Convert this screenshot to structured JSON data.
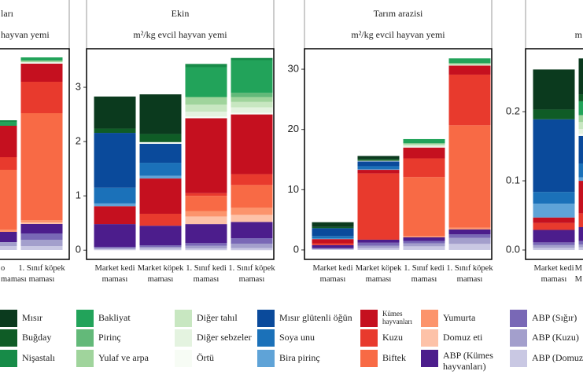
{
  "chart_data": [
    {
      "type": "stacked-bar",
      "title": "ları",
      "subtitle": "hayvan yemi",
      "categories": [
        "o maması",
        "1. Sınıf köpek maması"
      ],
      "ylim": [
        -1.2,
        25.6
      ],
      "series": [
        {
          "name": "Mısır",
          "color": "#0b3a1e",
          "values": [
            0,
            0
          ]
        },
        {
          "name": "Buğday",
          "color": "#0f5c26",
          "values": [
            0,
            0
          ]
        },
        {
          "name": "Nişastalı",
          "color": "#178b48",
          "values": [
            0.2,
            0
          ]
        },
        {
          "name": "Bakliyat",
          "color": "#22a35a",
          "values": [
            0.5,
            0.4
          ]
        },
        {
          "name": "Pirinç",
          "color": "#63b979",
          "values": [
            0,
            0
          ]
        },
        {
          "name": "Yulaf ve arpa",
          "color": "#a0d49c",
          "values": [
            0,
            0.2
          ]
        },
        {
          "name": "Diğer tahıl",
          "color": "#c8e7c1",
          "values": [
            0,
            0
          ]
        },
        {
          "name": "Diğer sebzeler",
          "color": "#e4f3e0",
          "values": [
            0,
            0.1
          ]
        },
        {
          "name": "Örtü",
          "color": "#f7fcf5",
          "values": [
            0,
            0.1
          ]
        },
        {
          "name": "Mısır glütenli öğün",
          "color": "#0a4a9b",
          "values": [
            0,
            0
          ]
        },
        {
          "name": "Soya unu",
          "color": "#1b71b9",
          "values": [
            0,
            0
          ]
        },
        {
          "name": "Bira pirinç",
          "color": "#5fa3d7",
          "values": [
            0,
            0
          ]
        },
        {
          "name": "Kümes hayvanları",
          "color": "#c5101f",
          "values": [
            4.0,
            2.3
          ]
        },
        {
          "name": "Kuzu",
          "color": "#e83a2d",
          "values": [
            1.6,
            4.0
          ]
        },
        {
          "name": "Biftek",
          "color": "#f86a45",
          "values": [
            7.6,
            13.6
          ]
        },
        {
          "name": "Yumurta",
          "color": "#fc946c",
          "values": [
            0.3,
            0.3
          ]
        },
        {
          "name": "Domuz eti",
          "color": "#fdc2a8",
          "values": [
            0,
            0.2
          ]
        },
        {
          "name": "ABP (Kümes hayvanları)",
          "color": "#4c1d8c",
          "values": [
            1.3,
            1.2
          ]
        },
        {
          "name": "ABP (Sığır)",
          "color": "#7968b6",
          "values": [
            0,
            0.8
          ]
        },
        {
          "name": "ABP (Kuzu)",
          "color": "#a39fcc",
          "values": [
            0.5,
            0.8
          ]
        },
        {
          "name": "ABP (Domuz",
          "color": "#c9c8e3",
          "values": [
            0.5,
            0.5
          ]
        }
      ]
    },
    {
      "type": "stacked-bar",
      "title": "Ekin",
      "subtitle": "m²/kg evcil hayvan yemi",
      "categories": [
        "Market kedi maması",
        "Market köpek maması",
        "1. Sınıf kedi maması",
        "1. Sınıf köpek maması"
      ],
      "ylim": [
        -0.17,
        3.71
      ],
      "yticks": [
        0,
        1,
        2,
        3
      ],
      "series": [
        {
          "name": "Mısır",
          "color": "#0b3a1e",
          "values": [
            0.59,
            0.73,
            0,
            0
          ]
        },
        {
          "name": "Buğday",
          "color": "#0f5c26",
          "values": [
            0.08,
            0.15,
            0,
            0
          ]
        },
        {
          "name": "Nişastalı",
          "color": "#178b48",
          "values": [
            0,
            0,
            0.06,
            0.04
          ]
        },
        {
          "name": "Bakliyat",
          "color": "#22a35a",
          "values": [
            0,
            0,
            0.55,
            0.6
          ]
        },
        {
          "name": "Pirinç",
          "color": "#63b979",
          "values": [
            0,
            0,
            0,
            0.08
          ]
        },
        {
          "name": "Yulaf ve arpa",
          "color": "#a0d49c",
          "values": [
            0,
            0,
            0.14,
            0.09
          ]
        },
        {
          "name": "Diğer tahıl",
          "color": "#c8e7c1",
          "values": [
            0,
            0,
            0.13,
            0.1
          ]
        },
        {
          "name": "Diğer sebzeler",
          "color": "#e4f3e0",
          "values": [
            0,
            0,
            0.09,
            0.1
          ]
        },
        {
          "name": "Örtü",
          "color": "#f7fcf5",
          "values": [
            0,
            0.03,
            0.03,
            0.03
          ]
        },
        {
          "name": "Mısır glütenli öğün",
          "color": "#0a4a9b",
          "values": [
            1.01,
            0.35,
            0,
            0
          ]
        },
        {
          "name": "Soya unu",
          "color": "#1b71b9",
          "values": [
            0.29,
            0.24,
            0,
            0
          ]
        },
        {
          "name": "Bira pirinç",
          "color": "#5fa3d7",
          "values": [
            0.05,
            0.05,
            0,
            0
          ]
        },
        {
          "name": "Kümes hayvanları",
          "color": "#c5101f",
          "values": [
            0.33,
            0.65,
            1.38,
            1.1
          ]
        },
        {
          "name": "Kuzu",
          "color": "#e83a2d",
          "values": [
            0,
            0.22,
            0.05,
            0.2
          ]
        },
        {
          "name": "Biftek",
          "color": "#f86a45",
          "values": [
            0,
            0,
            0.28,
            0.42
          ]
        },
        {
          "name": "Yumurta",
          "color": "#fc946c",
          "values": [
            0,
            0,
            0.1,
            0.13
          ]
        },
        {
          "name": "Domuz eti",
          "color": "#fdc2a8",
          "values": [
            0,
            0,
            0.14,
            0.13
          ]
        },
        {
          "name": "ABP (Kümes hayvanları)",
          "color": "#4c1d8c",
          "values": [
            0.42,
            0.36,
            0.35,
            0.3
          ]
        },
        {
          "name": "ABP (Sığır)",
          "color": "#7968b6",
          "values": [
            0.02,
            0.03,
            0.05,
            0.1
          ]
        },
        {
          "name": "ABP (Kuzu)",
          "color": "#a39fcc",
          "values": [
            0.02,
            0.03,
            0.05,
            0.08
          ]
        },
        {
          "name": "ABP (Domuz",
          "color": "#c9c8e3",
          "values": [
            0.02,
            0.03,
            0.03,
            0.04
          ]
        }
      ]
    },
    {
      "type": "stacked-bar",
      "title": "Tarım arazisi",
      "subtitle": "m²/kg evcil hayvan yemi",
      "categories": [
        "Market kedi maması",
        "Market köpek maması",
        "1. Sınıf kedi maması",
        "1. Sınıf köpek maması"
      ],
      "ylim": [
        -1.57,
        33.4
      ],
      "yticks": [
        0,
        10,
        20,
        30
      ],
      "series": [
        {
          "name": "Mısır",
          "color": "#0b3a1e",
          "values": [
            0.8,
            0.5,
            0,
            0
          ]
        },
        {
          "name": "Buğday",
          "color": "#0f5c26",
          "values": [
            0.2,
            0.3,
            0,
            0
          ]
        },
        {
          "name": "Nişastalı",
          "color": "#178b48",
          "values": [
            0,
            0,
            0,
            0
          ]
        },
        {
          "name": "Bakliyat",
          "color": "#22a35a",
          "values": [
            0,
            0,
            0.7,
            0.8
          ]
        },
        {
          "name": "Pirinç",
          "color": "#63b979",
          "values": [
            0,
            0,
            0,
            0
          ]
        },
        {
          "name": "Yulaf ve arpa",
          "color": "#a0d49c",
          "values": [
            0,
            0,
            0.2,
            0.2
          ]
        },
        {
          "name": "Diğer tahıl",
          "color": "#c8e7c1",
          "values": [
            0,
            0,
            0.2,
            0.1
          ]
        },
        {
          "name": "Diğer sebzeler",
          "color": "#e4f3e0",
          "values": [
            0,
            0,
            0.2,
            0.1
          ]
        },
        {
          "name": "Örtü",
          "color": "#f7fcf5",
          "values": [
            0,
            0.1,
            0.1,
            0
          ]
        },
        {
          "name": "Mısır glütenli öğün",
          "color": "#0a4a9b",
          "values": [
            1.3,
            0.8,
            0,
            0
          ]
        },
        {
          "name": "Soya unu",
          "color": "#1b71b9",
          "values": [
            0.4,
            0.5,
            0,
            0
          ]
        },
        {
          "name": "Bira pirinç",
          "color": "#5fa3d7",
          "values": [
            0.1,
            0.1,
            0,
            0
          ]
        },
        {
          "name": "Kümes hayvanları",
          "color": "#c5101f",
          "values": [
            0.7,
            0.6,
            1.8,
            1.5
          ]
        },
        {
          "name": "Kuzu",
          "color": "#e83a2d",
          "values": [
            0.3,
            11.0,
            3.1,
            8.4
          ]
        },
        {
          "name": "Biftek",
          "color": "#f86a45",
          "values": [
            0,
            0,
            9.8,
            17.0
          ]
        },
        {
          "name": "Yumurta",
          "color": "#fc946c",
          "values": [
            0,
            0,
            0.2,
            0.3
          ]
        },
        {
          "name": "Domuz eti",
          "color": "#fdc2a8",
          "values": [
            0,
            0,
            0,
            0
          ]
        },
        {
          "name": "ABP (Kümes hayvanları)",
          "color": "#4c1d8c",
          "values": [
            0.5,
            0.5,
            0.6,
            0.8
          ]
        },
        {
          "name": "ABP (Sığır)",
          "color": "#7968b6",
          "values": [
            0.1,
            0.5,
            0.4,
            0.6
          ]
        },
        {
          "name": "ABP (Kuzu)",
          "color": "#a39fcc",
          "values": [
            0.1,
            0.4,
            0.5,
            1.0
          ]
        },
        {
          "name": "ABP (Domuz",
          "color": "#c9c8e3",
          "values": [
            0.1,
            0.3,
            0.6,
            1.0
          ]
        }
      ]
    },
    {
      "type": "stacked-bar",
      "subtitle": "m",
      "categories": [
        "Market kedi maması",
        "M M"
      ],
      "ylim": [
        -0.0136,
        0.291
      ],
      "yticks": [
        {
          "value": 0,
          "label": "0.0"
        },
        {
          "value": 0.1,
          "label": "0.1"
        },
        {
          "value": 0.2,
          "label": "0.2"
        }
      ],
      "series": [
        {
          "name": "Mısır",
          "color": "#0b3a1e",
          "values": [
            0.058,
            0.052
          ]
        },
        {
          "name": "Buğday",
          "color": "#0f5c26",
          "values": [
            0.014,
            0.01
          ]
        },
        {
          "name": "Nişastalı",
          "color": "#178b48",
          "values": [
            0,
            0
          ]
        },
        {
          "name": "Bakliyat",
          "color": "#22a35a",
          "values": [
            0,
            0.02
          ]
        },
        {
          "name": "Pirinç",
          "color": "#63b979",
          "values": [
            0,
            0
          ]
        },
        {
          "name": "Yulaf ve arpa",
          "color": "#a0d49c",
          "values": [
            0,
            0.01
          ]
        },
        {
          "name": "Diğer tahıl",
          "color": "#c8e7c1",
          "values": [
            0,
            0.01
          ]
        },
        {
          "name": "Diğer sebzeler",
          "color": "#e4f3e0",
          "values": [
            0,
            0.007
          ]
        },
        {
          "name": "Örtü",
          "color": "#f7fcf5",
          "values": [
            0,
            0.003
          ]
        },
        {
          "name": "Mısır glütenli öğün",
          "color": "#0a4a9b",
          "values": [
            0.105,
            0.04
          ]
        },
        {
          "name": "Soya unu",
          "color": "#1b71b9",
          "values": [
            0.017,
            0.02
          ]
        },
        {
          "name": "Bira pirinç",
          "color": "#5fa3d7",
          "values": [
            0.02,
            0.005
          ]
        },
        {
          "name": "Kümes hayvanları",
          "color": "#c5101f",
          "values": [
            0.008,
            0.047
          ]
        },
        {
          "name": "Kuzu",
          "color": "#e83a2d",
          "values": [
            0.01,
            0.02
          ]
        },
        {
          "name": "Biftek",
          "color": "#f86a45",
          "values": [
            0,
            0
          ]
        },
        {
          "name": "Yumurta",
          "color": "#fc946c",
          "values": [
            0,
            0
          ]
        },
        {
          "name": "Domuz eti",
          "color": "#fdc2a8",
          "values": [
            0,
            0
          ]
        },
        {
          "name": "ABP (Kümes hayvanları)",
          "color": "#4c1d8c",
          "values": [
            0.018,
            0.02
          ]
        },
        {
          "name": "ABP (Sığır)",
          "color": "#7968b6",
          "values": [
            0.004,
            0.005
          ]
        },
        {
          "name": "ABP (Kuzu)",
          "color": "#a39fcc",
          "values": [
            0.004,
            0.004
          ]
        },
        {
          "name": "ABP (Domuz",
          "color": "#c9c8e3",
          "values": [
            0.003,
            0.004
          ]
        }
      ]
    }
  ]
}
